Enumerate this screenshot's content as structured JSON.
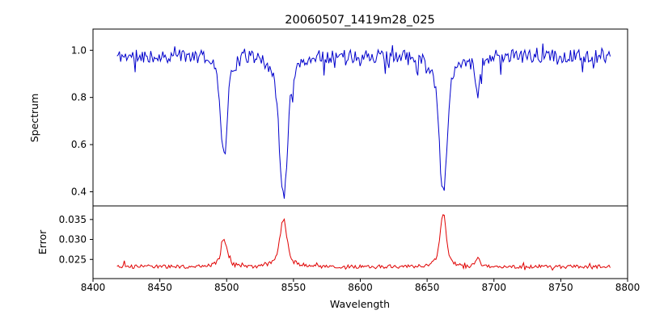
{
  "title": "20060507_1419m28_025",
  "x_axis": {
    "label": "Wavelength",
    "xlim": [
      8400,
      8800
    ],
    "xtick_values": [
      8400,
      8450,
      8500,
      8550,
      8600,
      8650,
      8700,
      8750,
      8800
    ],
    "xtick_labels": [
      "8400",
      "8450",
      "8500",
      "8550",
      "8600",
      "8650",
      "8700",
      "8750",
      "8800"
    ]
  },
  "chart_data": [
    {
      "type": "line",
      "name": "spectrum",
      "ylabel": "Spectrum",
      "color": "#0000cc",
      "ylim": [
        0.34,
        1.09
      ],
      "ytick_values": [
        0.4,
        0.6,
        0.8,
        1.0
      ],
      "ytick_labels": [
        "0.4",
        "0.6",
        "0.8",
        "1.0"
      ],
      "x_start": 8418,
      "x_end": 8787,
      "x_step": 0.9,
      "baseline": 0.975,
      "noise_amplitude": 0.028,
      "noise_seed": 11,
      "absorption_lines": [
        {
          "center": 8498,
          "depth": 0.425,
          "width": 2.2
        },
        {
          "center": 8542.5,
          "depth": 0.6,
          "width": 2.8
        },
        {
          "center": 8662,
          "depth": 0.585,
          "width": 2.6
        },
        {
          "center": 8688,
          "depth": 0.155,
          "width": 1.6
        }
      ]
    },
    {
      "type": "line",
      "name": "error",
      "ylabel": "Error",
      "color": "#e00000",
      "ylim": [
        0.0202,
        0.0384
      ],
      "ytick_values": [
        0.025,
        0.03,
        0.035
      ],
      "ytick_labels": [
        "0.025",
        "0.030",
        "0.035"
      ],
      "x_start": 8418,
      "x_end": 8787,
      "x_step": 0.9,
      "baseline": 0.0232,
      "noise_amplitude": 0.00045,
      "noise_seed": 97,
      "emission_lines": [
        {
          "center": 8498,
          "height": 0.0068,
          "width": 2.0
        },
        {
          "center": 8542.5,
          "height": 0.0118,
          "width": 2.4
        },
        {
          "center": 8662,
          "height": 0.0134,
          "width": 2.0
        },
        {
          "center": 8688,
          "height": 0.0022,
          "width": 1.4
        }
      ]
    }
  ]
}
